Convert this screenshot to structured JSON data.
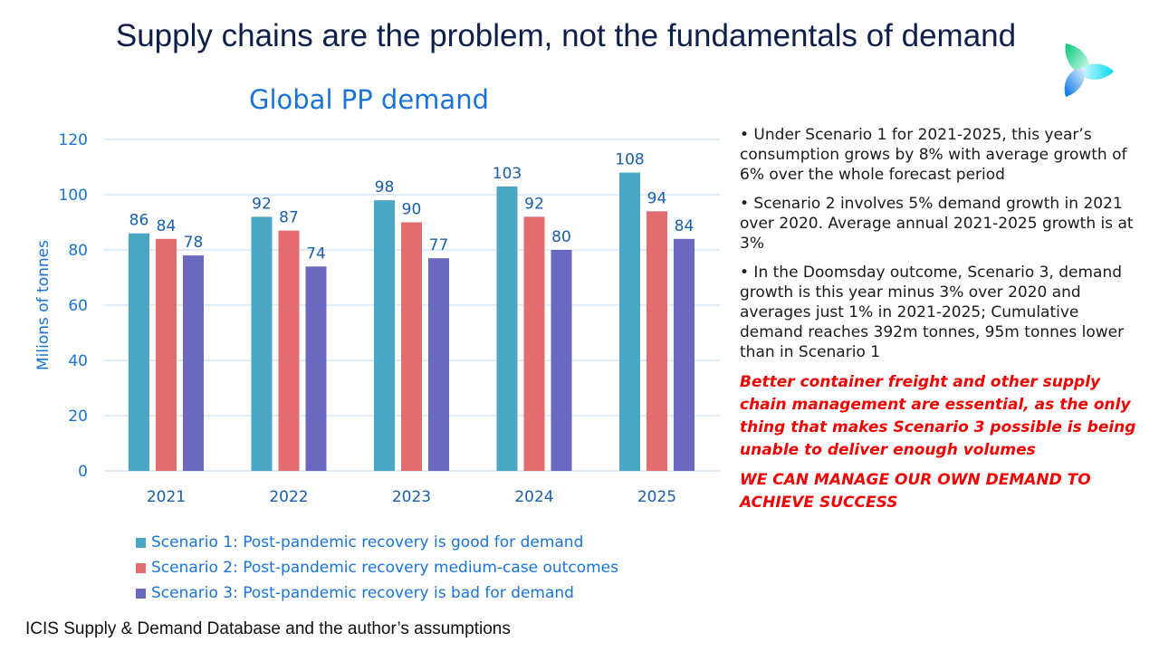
{
  "slide_title": "Supply chains are the problem, not the fundamentals of demand",
  "chart_data": {
    "type": "bar",
    "title": "Global PP demand",
    "ylabel": "Milions of tonnes",
    "xlabel": "",
    "ylim": [
      0,
      120
    ],
    "yticks": [
      0,
      20,
      40,
      60,
      80,
      100,
      120
    ],
    "grid": true,
    "legend_position": "bottom",
    "categories": [
      "2021",
      "2022",
      "2023",
      "2024",
      "2025"
    ],
    "series": [
      {
        "name": "Scenario 1: Post-pandemic recovery is good for demand",
        "color": "#4BA6C4",
        "values": [
          86,
          92,
          98,
          103,
          108
        ]
      },
      {
        "name": "Scenario 2: Post-pandemic recovery medium-case outcomes",
        "color": "#E36C6E",
        "values": [
          84,
          87,
          90,
          92,
          94
        ]
      },
      {
        "name": "Scenario 3: Post-pandemic recovery is bad for demand",
        "color": "#6B68C0",
        "values": [
          78,
          74,
          77,
          80,
          84
        ]
      }
    ]
  },
  "notes": [
    "•  Under Scenario 1 for 2021-2025, this year’s consumption grows by 8% with average growth of 6% over the whole forecast period",
    "•  Scenario 2 involves 5% demand growth in 2021 over 2020. Average annual 2021-2025 growth is at 3%",
    "•  In the Doomsday outcome, Scenario 3, demand growth is this year minus 3% over 2020 and averages just 1% in 2021-2025; Cumulative demand reaches 392m tonnes, 95m tonnes lower than in Scenario 1"
  ],
  "highlights": [
    "Better container freight and other supply chain management are essential, as the only thing that makes Scenario 3 possible is being unable to deliver enough volumes",
    "WE CAN MANAGE OUR OWN DEMAND TO ACHIEVE SUCCESS"
  ],
  "source": "ICIS Supply  & Demand Database and the author’s assumptions",
  "logo": "icis-leaf-logo"
}
